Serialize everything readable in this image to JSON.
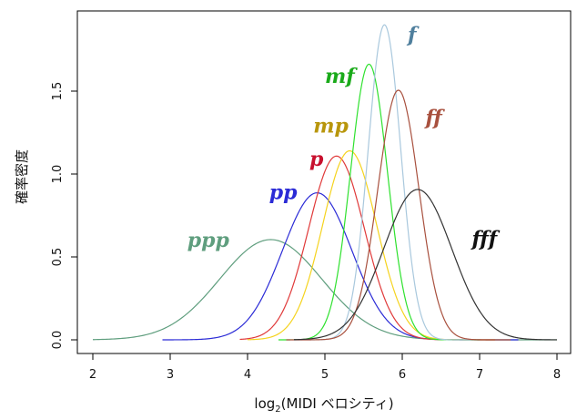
{
  "chart_data": {
    "type": "line",
    "title": "",
    "xlabel": "log",
    "xlabel_sub": "2",
    "xlabel_rest": "(MIDI ベロシティ)",
    "ylabel": "確率密度",
    "xlim": [
      2,
      8
    ],
    "ylim": [
      0,
      1.9
    ],
    "x_ticks": [
      2,
      3,
      4,
      5,
      6,
      7,
      8
    ],
    "x_tick_labels": [
      "2",
      "3",
      "4",
      "5",
      "6",
      "7",
      "8"
    ],
    "y_ticks": [
      0,
      0.5,
      1.0,
      1.5
    ],
    "y_tick_labels": [
      "0.0",
      "0.5",
      "1.0",
      "1.5"
    ],
    "grid": false,
    "legend": "none",
    "series": [
      {
        "name": "ppp",
        "color": "#5f9e7e",
        "mean": 4.3,
        "sd": 0.66,
        "x_range": [
          2.0,
          8.0
        ]
      },
      {
        "name": "pp",
        "color": "#2b2bd6",
        "mean": 4.9,
        "sd": 0.45,
        "x_range": [
          2.9,
          7.5
        ]
      },
      {
        "name": "p",
        "color": "#e03a3a",
        "mean": 5.15,
        "sd": 0.36,
        "x_range": [
          3.9,
          7.2
        ]
      },
      {
        "name": "mp",
        "color": "#f5d31e",
        "mean": 5.32,
        "sd": 0.35,
        "x_range": [
          4.0,
          7.2
        ]
      },
      {
        "name": "mf",
        "color": "#2ee12e",
        "mean": 5.57,
        "sd": 0.24,
        "x_range": [
          4.4,
          7.0
        ]
      },
      {
        "name": "f",
        "color": "#a9c8dd",
        "mean": 5.77,
        "sd": 0.21,
        "x_range": [
          4.6,
          7.0
        ]
      },
      {
        "name": "ff",
        "color": "#a8503e",
        "mean": 5.95,
        "sd": 0.265,
        "x_range": [
          4.5,
          7.4
        ]
      },
      {
        "name": "fff",
        "color": "#333333",
        "mean": 6.2,
        "sd": 0.44,
        "x_range": [
          4.6,
          8.0
        ]
      }
    ],
    "annotations": [
      {
        "text": "ppp",
        "x": 3.22,
        "y": 0.56,
        "color": "#5f9e7e"
      },
      {
        "text": "pp",
        "x": 4.28,
        "y": 0.85,
        "color": "#2b2bd6"
      },
      {
        "text": "p",
        "x": 4.8,
        "y": 1.05,
        "color": "#c8102e"
      },
      {
        "text": "mp",
        "x": 4.85,
        "y": 1.25,
        "color": "#b8960c"
      },
      {
        "text": "mf",
        "x": 5.0,
        "y": 1.55,
        "color": "#1aaa1a"
      },
      {
        "text": "f",
        "x": 6.07,
        "y": 1.8,
        "color": "#4f7f9d"
      },
      {
        "text": "ff",
        "x": 6.3,
        "y": 1.3,
        "color": "#a8503e"
      },
      {
        "text": "fff",
        "x": 6.9,
        "y": 0.57,
        "color": "#111111"
      }
    ]
  }
}
